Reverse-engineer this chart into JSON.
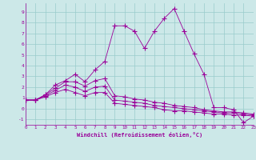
{
  "xlabel": "Windchill (Refroidissement éolien,°C)",
  "x": [
    0,
    1,
    2,
    3,
    4,
    5,
    6,
    7,
    8,
    9,
    10,
    11,
    12,
    13,
    14,
    15,
    16,
    17,
    18,
    19,
    20,
    21,
    22,
    23
  ],
  "series1": [
    0.8,
    0.8,
    1.3,
    2.2,
    2.6,
    3.2,
    2.5,
    3.6,
    4.4,
    7.7,
    7.7,
    7.2,
    5.6,
    7.2,
    8.4,
    9.3,
    7.2,
    5.1,
    3.2,
    0.1,
    0.1,
    -0.1,
    -1.3,
    -0.7
  ],
  "series2": [
    0.8,
    0.8,
    1.3,
    1.9,
    2.5,
    2.5,
    2.1,
    2.6,
    2.8,
    1.2,
    1.1,
    0.9,
    0.8,
    0.6,
    0.5,
    0.3,
    0.2,
    0.1,
    -0.1,
    -0.2,
    -0.3,
    -0.3,
    -0.4,
    -0.5
  ],
  "series3": [
    0.8,
    0.8,
    1.2,
    1.7,
    2.2,
    2.0,
    1.6,
    2.0,
    2.1,
    0.8,
    0.7,
    0.6,
    0.5,
    0.3,
    0.2,
    0.1,
    0.0,
    -0.1,
    -0.2,
    -0.3,
    -0.4,
    -0.4,
    -0.5,
    -0.6
  ],
  "series4": [
    0.8,
    0.8,
    1.1,
    1.5,
    1.8,
    1.5,
    1.2,
    1.5,
    1.5,
    0.5,
    0.4,
    0.3,
    0.2,
    0.1,
    -0.1,
    -0.2,
    -0.2,
    -0.3,
    -0.4,
    -0.5,
    -0.5,
    -0.6,
    -0.6,
    -0.7
  ],
  "line_color": "#990099",
  "bg_color": "#cce8e8",
  "grid_color": "#99cccc",
  "ylim": [
    -1.5,
    9.8
  ],
  "xlim": [
    0,
    23
  ],
  "yticks": [
    -1,
    0,
    1,
    2,
    3,
    4,
    5,
    6,
    7,
    8,
    9
  ],
  "xticks": [
    0,
    1,
    2,
    3,
    4,
    5,
    6,
    7,
    8,
    9,
    10,
    11,
    12,
    13,
    14,
    15,
    16,
    17,
    18,
    19,
    20,
    21,
    22,
    23
  ]
}
